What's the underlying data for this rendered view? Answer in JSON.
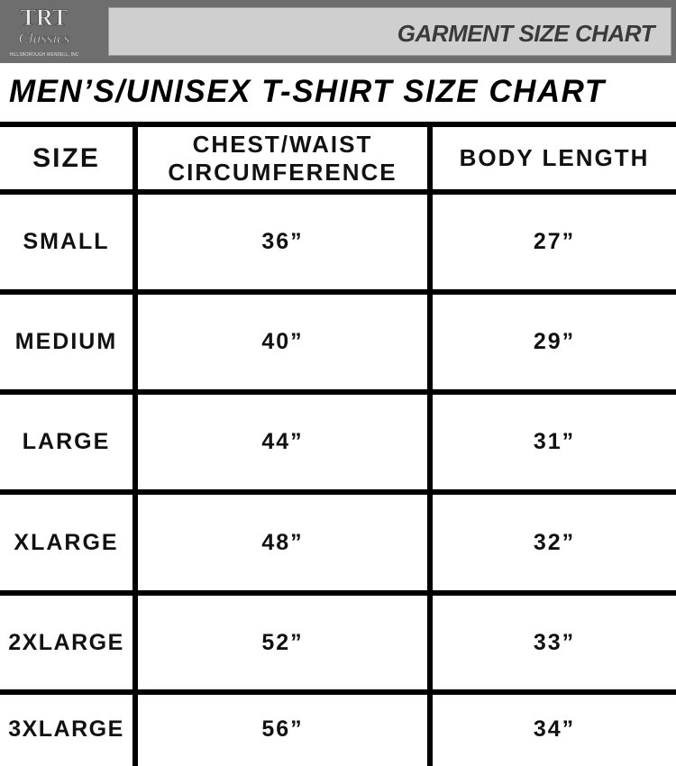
{
  "header": {
    "logo_text": "TRT Classics",
    "logo_subtext": "HILLSBOROUGH WENDELL, INC",
    "banner_title": "GARMENT SIZE CHART"
  },
  "title": "MEN’S/UNISEX T-SHIRT SIZE CHART",
  "table": {
    "columns": [
      "SIZE",
      "CHEST/WAIST CIRCUMFERENCE",
      "BODY LENGTH"
    ],
    "rows": [
      [
        "SMALL",
        "36”",
        "27”"
      ],
      [
        "MEDIUM",
        "40”",
        "29”"
      ],
      [
        "LARGE",
        "44”",
        "31”"
      ],
      [
        "XLARGE",
        "48”",
        "32”"
      ],
      [
        "2XLARGE",
        "52”",
        "33”"
      ],
      [
        "3XLARGE",
        "56”",
        "34”"
      ]
    ]
  }
}
